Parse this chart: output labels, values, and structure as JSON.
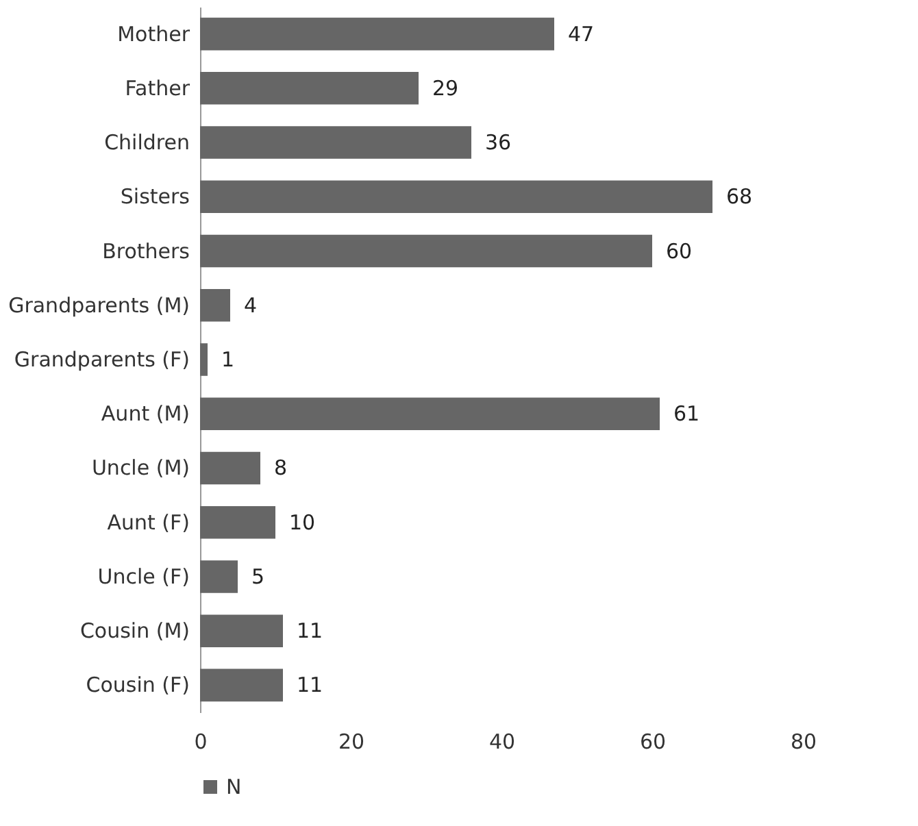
{
  "chart_data": {
    "type": "bar",
    "orientation": "horizontal",
    "categories": [
      "Mother",
      "Father",
      "Children",
      "Sisters",
      "Brothers",
      "Grandparents (M)",
      "Grandparents (F)",
      "Aunt (M)",
      "Uncle (M)",
      "Aunt (F)",
      "Uncle (F)",
      "Cousin (M)",
      "Cousin (F)"
    ],
    "series": [
      {
        "name": "N",
        "color": "#666666",
        "values": [
          47,
          29,
          36,
          68,
          60,
          4,
          1,
          61,
          8,
          10,
          5,
          11,
          11
        ]
      }
    ],
    "xlim": [
      0,
      80
    ],
    "xticks": [
      0,
      20,
      40,
      60,
      80
    ],
    "data_labels": true,
    "legend": "bottom"
  }
}
